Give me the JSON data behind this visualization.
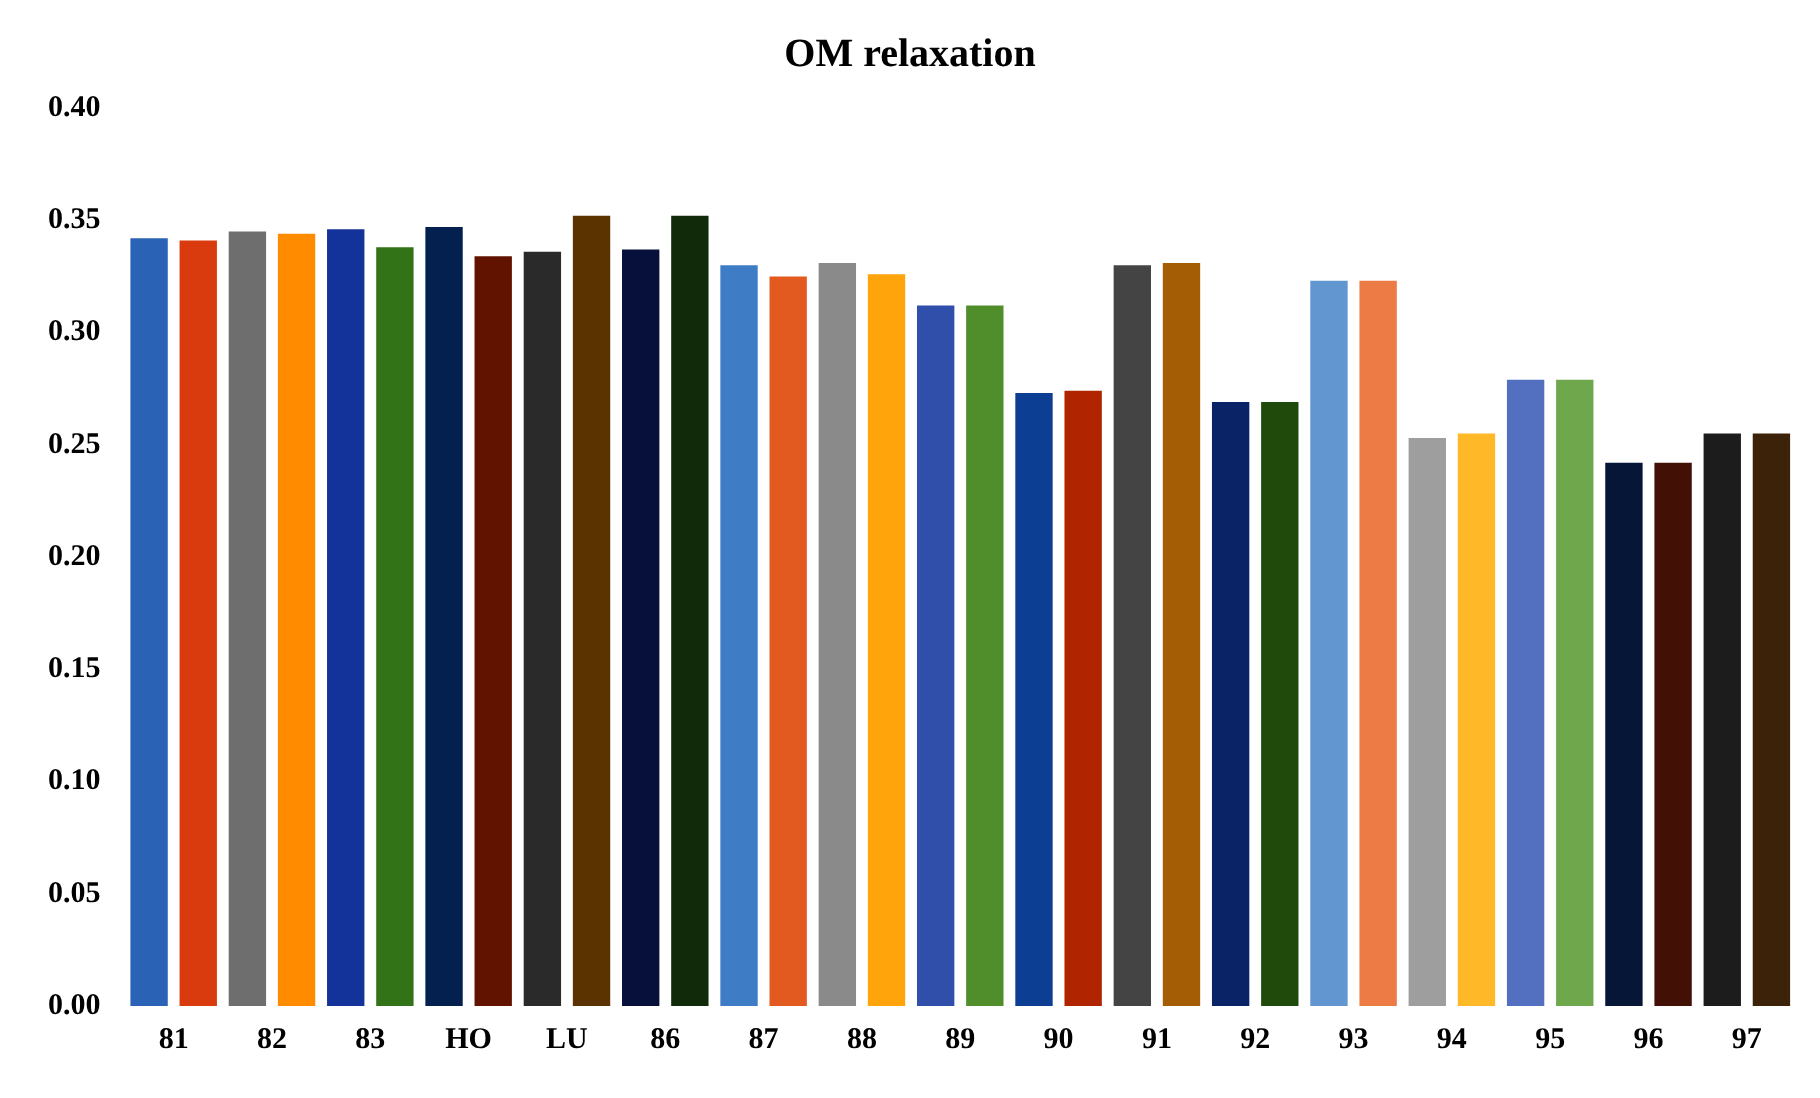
{
  "chart_data": {
    "type": "bar",
    "title": "OM relaxation",
    "categories": [
      "81",
      "82",
      "83",
      "HO",
      "LU",
      "86",
      "87",
      "88",
      "89",
      "90",
      "91",
      "92",
      "93",
      "94",
      "95",
      "96",
      "97"
    ],
    "series": [
      {
        "colors": [
          "#2a62b5",
          "#6e6e6e",
          "#13339a",
          "#03204e",
          "#2a2a2a",
          "#07103a",
          "#3f7cc6",
          "#8a8a8a",
          "#2f4faa",
          "#0c3f94",
          "#444444",
          "#0a2266",
          "#6196d0",
          "#9e9e9e",
          "#5270bf",
          "#061636",
          "#1c1c1c"
        ],
        "values": [
          0.342,
          0.345,
          0.346,
          0.347,
          0.336,
          0.337,
          0.33,
          0.331,
          0.312,
          0.273,
          0.33,
          0.269,
          0.323,
          0.253,
          0.279,
          0.242,
          0.255
        ]
      },
      {
        "colors": [
          "#d93a0e",
          "#ff8c00",
          "#327317",
          "#611300",
          "#5a3300",
          "#102a0a",
          "#e35a20",
          "#ffa40a",
          "#4f8e2a",
          "#b02400",
          "#a45c05",
          "#1f4a0c",
          "#ec7b45",
          "#ffb827",
          "#6fa84c",
          "#421005",
          "#3b2208"
        ],
        "values": [
          0.341,
          0.344,
          0.338,
          0.334,
          0.352,
          0.352,
          0.325,
          0.326,
          0.312,
          0.274,
          0.331,
          0.269,
          0.323,
          0.255,
          0.279,
          0.242,
          0.255
        ]
      }
    ],
    "ylim": [
      0,
      0.4
    ],
    "yticks": [
      {
        "value": 0,
        "label": "0.00"
      },
      {
        "value": 0.05,
        "label": "0.05"
      },
      {
        "value": 0.1,
        "label": "0.10"
      },
      {
        "value": 0.15,
        "label": "0.15"
      },
      {
        "value": 0.2,
        "label": "0.20"
      },
      {
        "value": 0.25,
        "label": "0.25"
      },
      {
        "value": 0.3,
        "label": "0.30"
      },
      {
        "value": 0.35,
        "label": "0.35"
      },
      {
        "value": 0.4,
        "label": "0.40"
      }
    ],
    "grid": false,
    "legend": false
  }
}
